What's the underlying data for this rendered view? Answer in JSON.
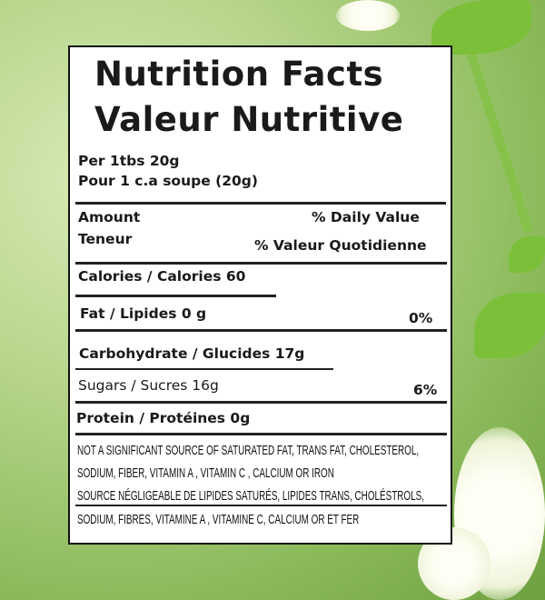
{
  "title_en": "Nutrition Facts",
  "title_fr": "Valeur Nutritive",
  "serving_en": "Per 1tbs 20g",
  "serving_fr": "Pour 1 c.a soupe (20g)",
  "header": {
    "amount": "Amount",
    "teneur": "Teneur",
    "dv_en": "% Daily Value",
    "dv_fr": "% Valeur Quotidienne"
  },
  "rows": {
    "calories": "Calories / Calories 60",
    "fat": "Fat / Lipides 0 g",
    "fat_dv": "0%",
    "carb": "Carbohydrate / Glucides 17g",
    "sugars": "Sugars / Sucres 16g",
    "carb_dv": "6%",
    "protein": "Protein / Protéines 0g"
  },
  "footnote": [
    "NOT A SIGNIFICANT SOURCE OF SATURATED FAT, TRANS FAT, CHOLESTEROL,",
    "SODIUM, FIBER, VITAMIN A , VITAMIN C , CALCIUM OR IRON",
    "SOURCE NÉGLIGEABLE DE LIPIDES SATURÉS, LIPIDES TRANS, CHOLÉSTROLS,",
    "SODIUM, FIBRES, VITAMINE A , VITAMINE C, CALCIUM OR ET FER"
  ]
}
